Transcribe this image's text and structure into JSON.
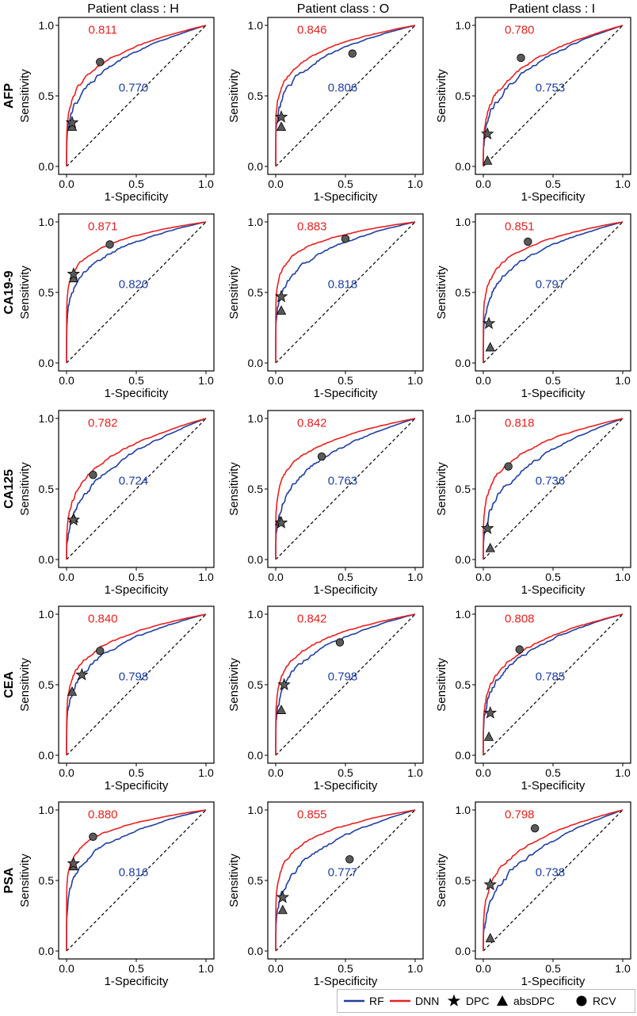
{
  "figure": {
    "column_headers": [
      "Patient class : H",
      "Patient class : O",
      "Patient class : I"
    ],
    "row_labels": [
      "AFP",
      "CA19-9",
      "CA125",
      "CEA",
      "PSA"
    ],
    "xlabel": "1-Specificity",
    "ylabel": "Sensitivity",
    "tick_labels": [
      "0.0",
      "0.5",
      "1.0"
    ],
    "colors": {
      "rf": "#1f3fa0",
      "dnn": "#e82020",
      "marker_fill": "#5a5a5a",
      "diagonal": "#000000"
    }
  },
  "legend": {
    "items": [
      {
        "label": "RF",
        "symbol": "line-blue"
      },
      {
        "label": "DNN",
        "symbol": "line-red"
      },
      {
        "label": "DPC",
        "symbol": "star"
      },
      {
        "label": "absDPC",
        "symbol": "triangle"
      },
      {
        "label": "RCV",
        "symbol": "circle"
      }
    ]
  },
  "chart_data": [
    {
      "type": "line",
      "marker": "AFP",
      "patient_class": "H",
      "xlim": [
        0,
        1
      ],
      "ylim": [
        0,
        1
      ],
      "auc_dnn": "0.811",
      "auc_rf": "0.770",
      "series": [
        {
          "name": "RF"
        },
        {
          "name": "DNN"
        }
      ],
      "points": {
        "dpc": [
          0.04,
          0.31
        ],
        "absdpc": [
          0.04,
          0.28
        ],
        "rcv": [
          0.24,
          0.74
        ]
      }
    },
    {
      "type": "line",
      "marker": "AFP",
      "patient_class": "O",
      "xlim": [
        0,
        1
      ],
      "ylim": [
        0,
        1
      ],
      "auc_dnn": "0.846",
      "auc_rf": "0.806",
      "series": [
        {
          "name": "RF"
        },
        {
          "name": "DNN"
        }
      ],
      "points": {
        "dpc": [
          0.04,
          0.35
        ],
        "absdpc": [
          0.04,
          0.28
        ],
        "rcv": [
          0.55,
          0.8
        ]
      }
    },
    {
      "type": "line",
      "marker": "AFP",
      "patient_class": "I",
      "xlim": [
        0,
        1
      ],
      "ylim": [
        0,
        1
      ],
      "auc_dnn": "0.780",
      "auc_rf": "0.753",
      "series": [
        {
          "name": "RF"
        },
        {
          "name": "DNN"
        }
      ],
      "points": {
        "dpc": [
          0.03,
          0.23
        ],
        "absdpc": [
          0.03,
          0.04
        ],
        "rcv": [
          0.27,
          0.77
        ]
      }
    },
    {
      "type": "line",
      "marker": "CA19-9",
      "patient_class": "H",
      "xlim": [
        0,
        1
      ],
      "ylim": [
        0,
        1
      ],
      "auc_dnn": "0.871",
      "auc_rf": "0.820",
      "series": [
        {
          "name": "RF"
        },
        {
          "name": "DNN"
        }
      ],
      "points": {
        "dpc": [
          0.05,
          0.63
        ],
        "absdpc": [
          0.05,
          0.6
        ],
        "rcv": [
          0.31,
          0.84
        ]
      }
    },
    {
      "type": "line",
      "marker": "CA19-9",
      "patient_class": "O",
      "xlim": [
        0,
        1
      ],
      "ylim": [
        0,
        1
      ],
      "auc_dnn": "0.883",
      "auc_rf": "0.818",
      "series": [
        {
          "name": "RF"
        },
        {
          "name": "DNN"
        }
      ],
      "points": {
        "dpc": [
          0.04,
          0.47
        ],
        "absdpc": [
          0.04,
          0.37
        ],
        "rcv": [
          0.5,
          0.88
        ]
      }
    },
    {
      "type": "line",
      "marker": "CA19-9",
      "patient_class": "I",
      "xlim": [
        0,
        1
      ],
      "ylim": [
        0,
        1
      ],
      "auc_dnn": "0.851",
      "auc_rf": "0.797",
      "series": [
        {
          "name": "RF"
        },
        {
          "name": "DNN"
        }
      ],
      "points": {
        "dpc": [
          0.04,
          0.28
        ],
        "absdpc": [
          0.05,
          0.11
        ],
        "rcv": [
          0.32,
          0.86
        ]
      }
    },
    {
      "type": "line",
      "marker": "CA125",
      "patient_class": "H",
      "xlim": [
        0,
        1
      ],
      "ylim": [
        0,
        1
      ],
      "auc_dnn": "0.782",
      "auc_rf": "0.724",
      "series": [
        {
          "name": "RF"
        },
        {
          "name": "DNN"
        }
      ],
      "points": {
        "dpc": [
          0.05,
          0.28
        ],
        "absdpc": [
          0.05,
          0.29
        ],
        "rcv": [
          0.19,
          0.6
        ]
      }
    },
    {
      "type": "line",
      "marker": "CA125",
      "patient_class": "O",
      "xlim": [
        0,
        1
      ],
      "ylim": [
        0,
        1
      ],
      "auc_dnn": "0.842",
      "auc_rf": "0.763",
      "series": [
        {
          "name": "RF"
        },
        {
          "name": "DNN"
        }
      ],
      "points": {
        "dpc": [
          0.04,
          0.26
        ],
        "absdpc": [
          0.03,
          0.27
        ],
        "rcv": [
          0.33,
          0.73
        ]
      }
    },
    {
      "type": "line",
      "marker": "CA125",
      "patient_class": "I",
      "xlim": [
        0,
        1
      ],
      "ylim": [
        0,
        1
      ],
      "auc_dnn": "0.818",
      "auc_rf": "0.736",
      "series": [
        {
          "name": "RF"
        },
        {
          "name": "DNN"
        }
      ],
      "points": {
        "dpc": [
          0.03,
          0.22
        ],
        "absdpc": [
          0.05,
          0.08
        ],
        "rcv": [
          0.18,
          0.66
        ]
      }
    },
    {
      "type": "line",
      "marker": "CEA",
      "patient_class": "H",
      "xlim": [
        0,
        1
      ],
      "ylim": [
        0,
        1
      ],
      "auc_dnn": "0.840",
      "auc_rf": "0.798",
      "series": [
        {
          "name": "RF"
        },
        {
          "name": "DNN"
        }
      ],
      "points": {
        "dpc": [
          0.11,
          0.57
        ],
        "absdpc": [
          0.04,
          0.45
        ],
        "rcv": [
          0.24,
          0.74
        ]
      }
    },
    {
      "type": "line",
      "marker": "CEA",
      "patient_class": "O",
      "xlim": [
        0,
        1
      ],
      "ylim": [
        0,
        1
      ],
      "auc_dnn": "0.842",
      "auc_rf": "0.798",
      "series": [
        {
          "name": "RF"
        },
        {
          "name": "DNN"
        }
      ],
      "points": {
        "dpc": [
          0.06,
          0.5
        ],
        "absdpc": [
          0.04,
          0.32
        ],
        "rcv": [
          0.46,
          0.8
        ]
      }
    },
    {
      "type": "line",
      "marker": "CEA",
      "patient_class": "I",
      "xlim": [
        0,
        1
      ],
      "ylim": [
        0,
        1
      ],
      "auc_dnn": "0.808",
      "auc_rf": "0.785",
      "series": [
        {
          "name": "RF"
        },
        {
          "name": "DNN"
        }
      ],
      "points": {
        "dpc": [
          0.05,
          0.3
        ],
        "absdpc": [
          0.04,
          0.13
        ],
        "rcv": [
          0.26,
          0.75
        ]
      }
    },
    {
      "type": "line",
      "marker": "PSA",
      "patient_class": "H",
      "xlim": [
        0,
        1
      ],
      "ylim": [
        0,
        1
      ],
      "auc_dnn": "0.880",
      "auc_rf": "0.816",
      "series": [
        {
          "name": "RF"
        },
        {
          "name": "DNN"
        }
      ],
      "points": {
        "dpc": [
          0.05,
          0.62
        ],
        "absdpc": [
          0.05,
          0.6
        ],
        "rcv": [
          0.19,
          0.81
        ]
      }
    },
    {
      "type": "line",
      "marker": "PSA",
      "patient_class": "O",
      "xlim": [
        0,
        1
      ],
      "ylim": [
        0,
        1
      ],
      "auc_dnn": "0.855",
      "auc_rf": "0.777",
      "series": [
        {
          "name": "RF"
        },
        {
          "name": "DNN"
        }
      ],
      "points": {
        "dpc": [
          0.05,
          0.38
        ],
        "absdpc": [
          0.05,
          0.29
        ],
        "rcv": [
          0.53,
          0.65
        ]
      }
    },
    {
      "type": "line",
      "marker": "PSA",
      "patient_class": "I",
      "xlim": [
        0,
        1
      ],
      "ylim": [
        0,
        1
      ],
      "auc_dnn": "0.798",
      "auc_rf": "0.738",
      "series": [
        {
          "name": "RF"
        },
        {
          "name": "DNN"
        }
      ],
      "points": {
        "dpc": [
          0.05,
          0.47
        ],
        "absdpc": [
          0.05,
          0.09
        ],
        "rcv": [
          0.37,
          0.87
        ]
      }
    }
  ]
}
